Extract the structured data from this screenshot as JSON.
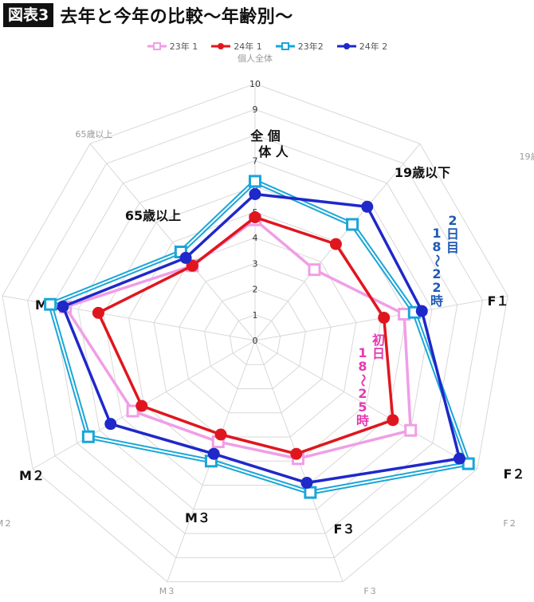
{
  "header": {
    "badge": "図表3",
    "title": "去年と今年の比較〜年齢別〜"
  },
  "colors": {
    "s23_1": "#f09ee6",
    "s24_1": "#e0161e",
    "s23_2": "#1aa6d8",
    "s24_2": "#1f28c9",
    "grid": "#d8d8d8",
    "annot_blue": "#1f5bb3",
    "annot_pink": "#e53ab0"
  },
  "annotations": {
    "day2": "2日目",
    "day2_time": "18〜22時",
    "day1": "初日",
    "day1_time": "18〜25時"
  },
  "big_labels": [
    "全個体人",
    "19歳以下",
    "F１",
    "F２",
    "F３",
    "M３",
    "M２",
    "M１",
    "65歳以上"
  ],
  "chart_data": {
    "type": "radar",
    "categories": [
      "個人全体",
      "19歳以下",
      "F１",
      "F２",
      "F３",
      "M３",
      "M２",
      "M１",
      "65歳以上"
    ],
    "range": [
      0,
      10
    ],
    "ticks": [
      "0",
      "1",
      "2",
      "3",
      "4",
      "5",
      "6",
      "7",
      "8",
      "9",
      "10"
    ],
    "series": [
      {
        "name": "23年 1",
        "values": [
          4.7,
          3.6,
          5.9,
          7.0,
          4.9,
          4.2,
          5.5,
          7.5,
          3.8
        ]
      },
      {
        "name": "24年 1",
        "values": [
          4.8,
          4.9,
          5.1,
          6.2,
          4.7,
          3.9,
          5.1,
          6.2,
          3.8
        ]
      },
      {
        "name": "23年2",
        "values": [
          6.2,
          5.9,
          6.3,
          9.6,
          6.3,
          5.0,
          7.5,
          8.1,
          4.5
        ]
      },
      {
        "name": "24年 2",
        "values": [
          5.7,
          6.8,
          6.6,
          9.2,
          5.9,
          4.7,
          6.5,
          7.6,
          4.2
        ]
      }
    ]
  }
}
